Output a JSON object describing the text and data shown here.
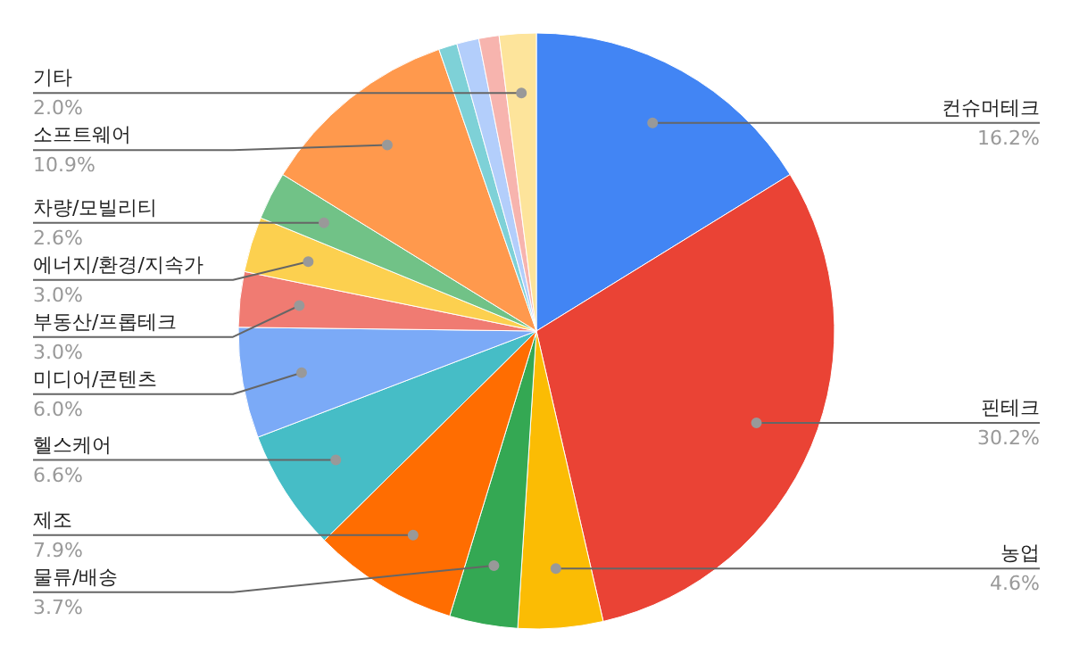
{
  "chart_data": {
    "type": "pie",
    "categories": [
      "컨슈머테크",
      "핀테크",
      "농업",
      "물류/배송",
      "제조",
      "헬스케어",
      "미디어/콘텐츠",
      "부동산/프롭테크",
      "에너지/환경/지속가",
      "차량/모빌리티",
      "소프트웨어",
      null,
      null,
      null,
      "기타"
    ],
    "values": [
      16.2,
      30.2,
      4.6,
      3.7,
      7.9,
      6.6,
      6.0,
      3.0,
      3.0,
      2.6,
      10.9,
      1.0,
      1.2,
      1.1,
      2.0
    ],
    "value_labels": [
      "16.2%",
      "30.2%",
      "4.6%",
      "3.7%",
      "7.9%",
      "6.6%",
      "6.0%",
      "3.0%",
      "3.0%",
      "2.6%",
      "10.9%",
      null,
      null,
      null,
      "2.0%"
    ],
    "colors": [
      "#4285f4",
      "#ea4335",
      "#fbbc04",
      "#34a853",
      "#ff6d01",
      "#46bdc6",
      "#7baaf7",
      "#f07b72",
      "#fcd04f",
      "#71c287",
      "#ff994d",
      "#7ed1d7",
      "#b3cefb",
      "#f7b4ae",
      "#fde49b"
    ]
  }
}
